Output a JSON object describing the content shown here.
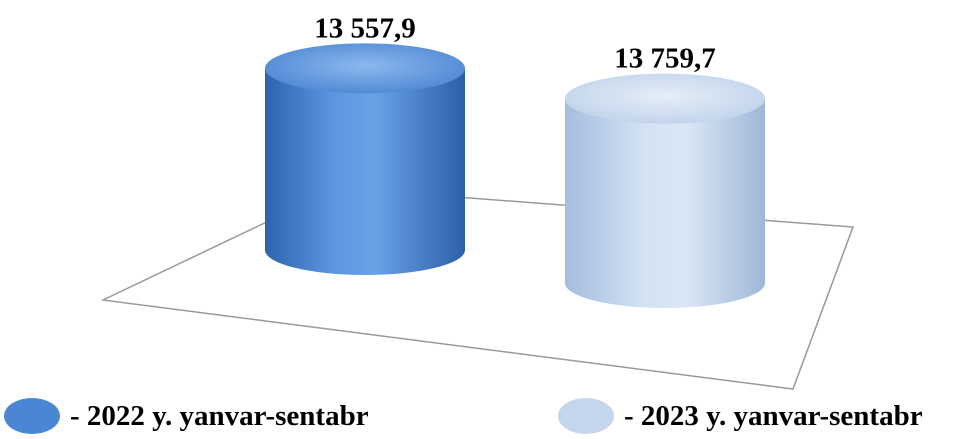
{
  "chart_data": {
    "type": "bar",
    "style": "3d-cylinder",
    "categories": [
      "2022 y. yanvar-sentabr",
      "2023 y. yanvar-sentabr"
    ],
    "values": [
      13557.9,
      13759.7
    ],
    "data_labels": [
      "13 557,9",
      "13 759,7"
    ],
    "colors": [
      "#4a86d4",
      "#c4d6ee"
    ],
    "title": "",
    "xlabel": "",
    "ylabel": "",
    "ylim": [
      0,
      14000
    ],
    "grid": false,
    "legend_position": "bottom"
  },
  "legend": {
    "items": [
      {
        "label": "-  2022 y. yanvar-sentabr",
        "color": "#4a86d4"
      },
      {
        "label": "-  2023 y. yanvar-sentabr",
        "color": "#c4d6ee"
      }
    ]
  }
}
